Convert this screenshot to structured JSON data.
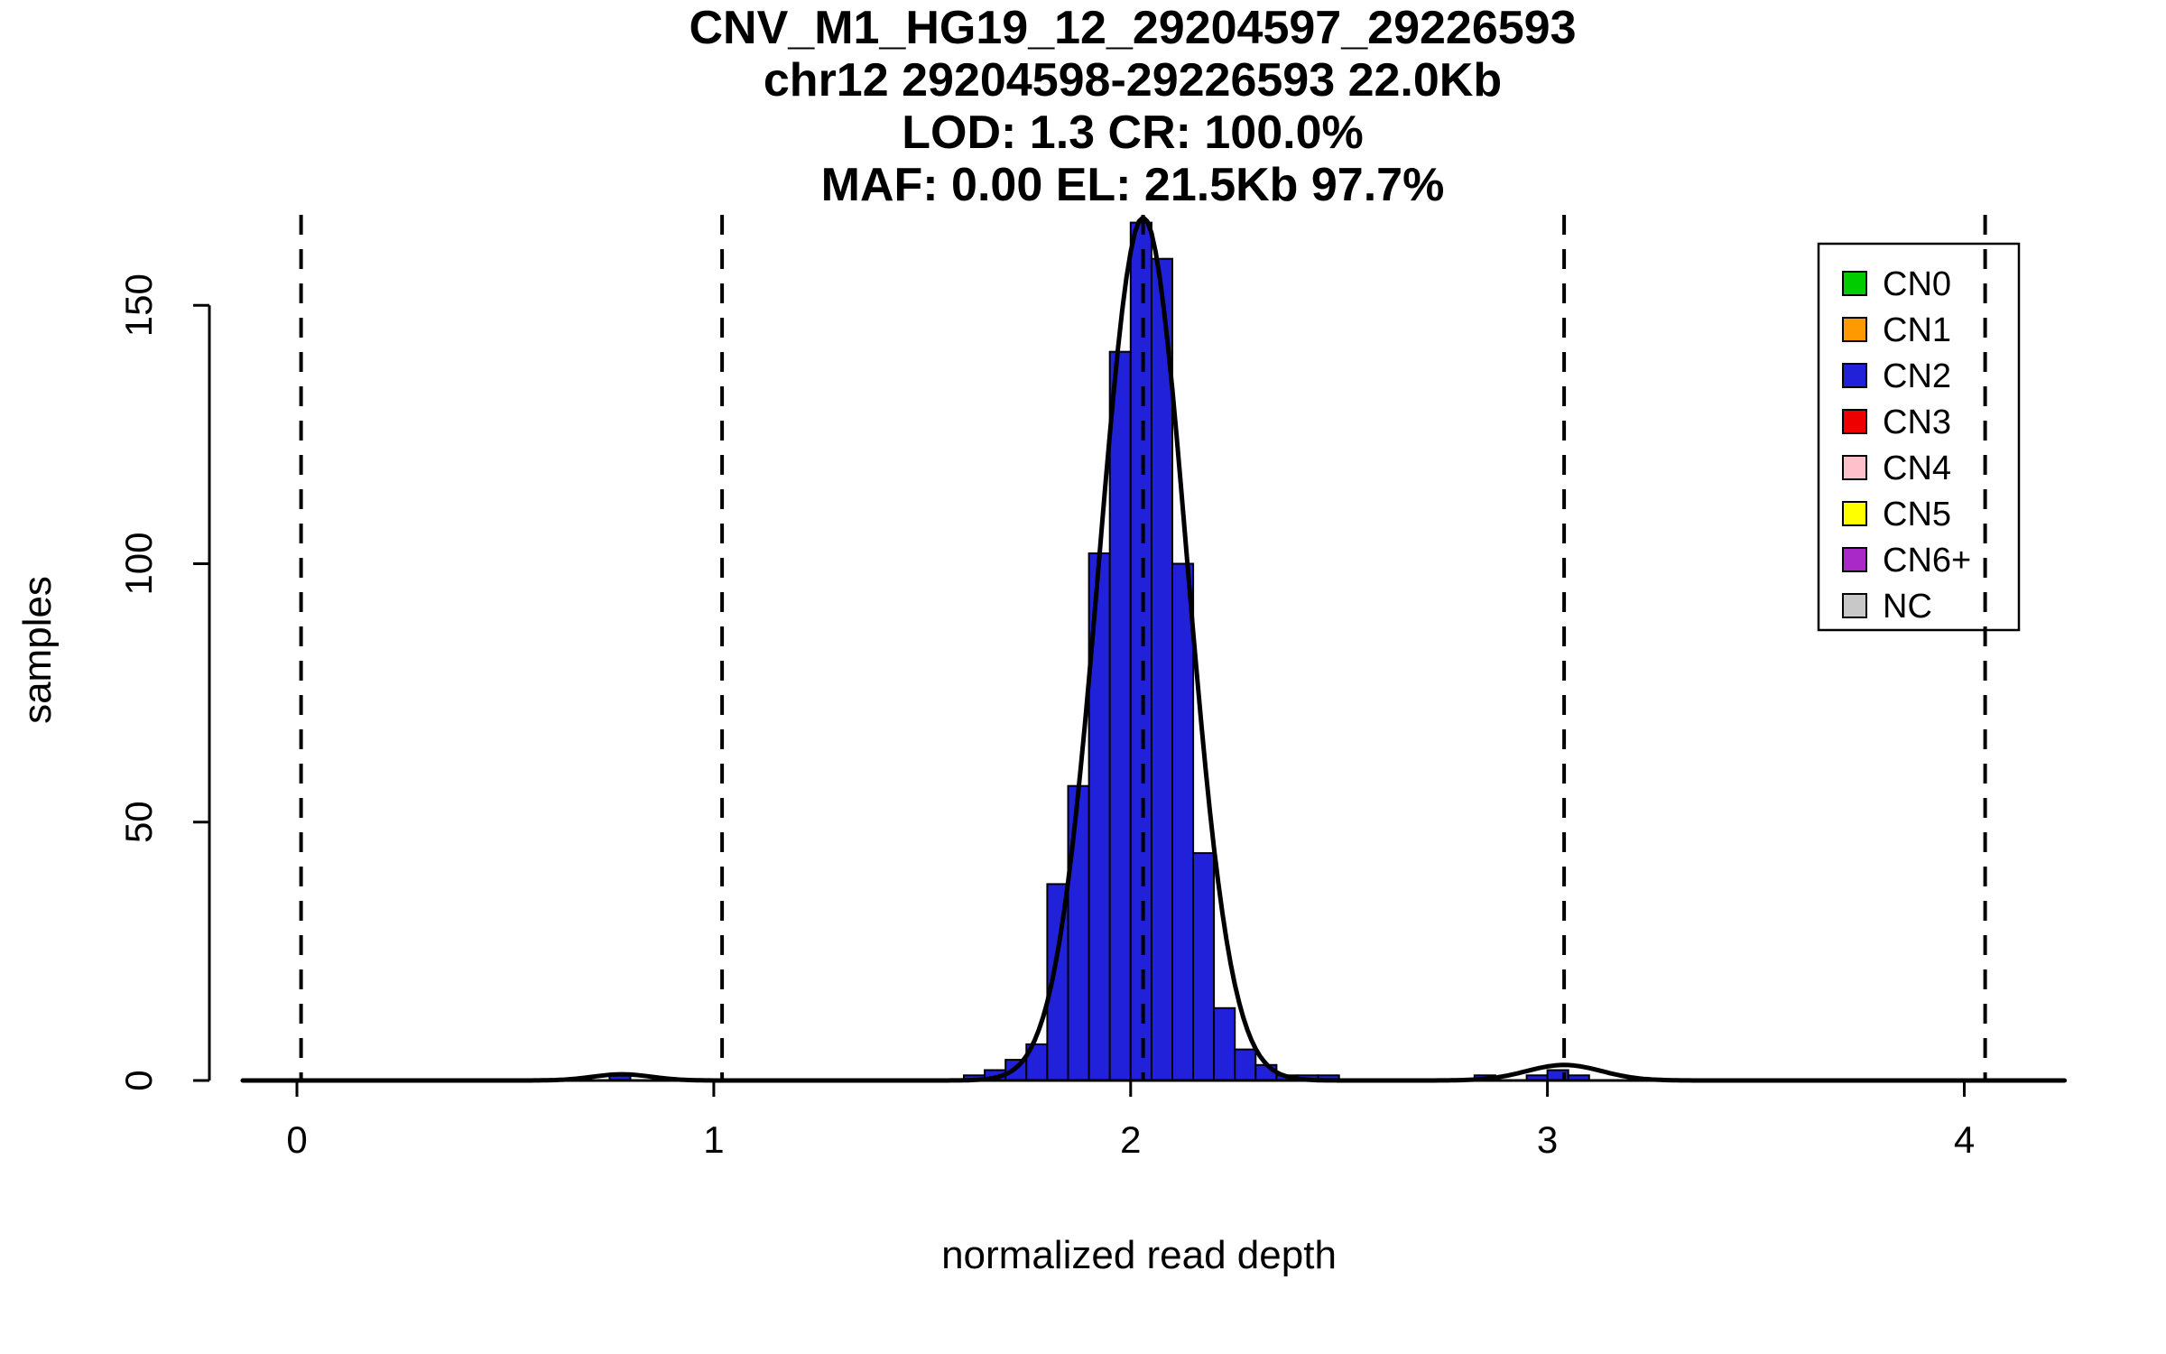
{
  "chart_data": {
    "type": "bar",
    "title": "CNV_M1_HG19_12_29204597_29226593",
    "subtitle": "chr12 29204598-29226593 22.0Kb",
    "stats_line1": "LOD: 1.3 CR: 100.0%",
    "stats_line2": "MAF: 0.00 EL: 21.5Kb 97.7%",
    "xlabel": "normalized read depth",
    "ylabel": "samples",
    "xlim": [
      -0.21,
      4.25
    ],
    "ylim": [
      0,
      167.5
    ],
    "x_ticks": [
      0,
      1,
      2,
      3,
      4
    ],
    "y_ticks": [
      0,
      50,
      100,
      150
    ],
    "grid": false,
    "legend_position": "top-right",
    "bin_width": 0.05,
    "bar_color": "#2121D9",
    "bar_border_color": "#000000",
    "bars": [
      {
        "x": 0.775,
        "count": 1
      },
      {
        "x": 1.625,
        "count": 1
      },
      {
        "x": 1.675,
        "count": 2
      },
      {
        "x": 1.725,
        "count": 4
      },
      {
        "x": 1.775,
        "count": 7
      },
      {
        "x": 1.825,
        "count": 38
      },
      {
        "x": 1.875,
        "count": 57
      },
      {
        "x": 1.925,
        "count": 102
      },
      {
        "x": 1.975,
        "count": 141
      },
      {
        "x": 2.025,
        "count": 166
      },
      {
        "x": 2.075,
        "count": 159
      },
      {
        "x": 2.125,
        "count": 100
      },
      {
        "x": 2.175,
        "count": 44
      },
      {
        "x": 2.225,
        "count": 14
      },
      {
        "x": 2.275,
        "count": 6
      },
      {
        "x": 2.325,
        "count": 3
      },
      {
        "x": 2.375,
        "count": 1
      },
      {
        "x": 2.425,
        "count": 1
      },
      {
        "x": 2.475,
        "count": 1
      },
      {
        "x": 2.85,
        "count": 1
      },
      {
        "x": 2.975,
        "count": 1
      },
      {
        "x": 3.025,
        "count": 2
      },
      {
        "x": 3.075,
        "count": 1
      }
    ],
    "dashed_vlines": [
      0.01,
      1.02,
      2.03,
      3.04,
      4.05
    ],
    "density_curve": {
      "color": "#000000",
      "range": [
        -0.13,
        4.24
      ],
      "gaussians": [
        {
          "amp": 167,
          "mu": 2.03,
          "sd": 0.105
        },
        {
          "amp": 3,
          "mu": 3.04,
          "sd": 0.09
        },
        {
          "amp": 1.2,
          "mu": 0.78,
          "sd": 0.07
        }
      ]
    },
    "legend": {
      "items": [
        {
          "label": "CN0",
          "color": "#00CC00"
        },
        {
          "label": "CN1",
          "color": "#FF9900"
        },
        {
          "label": "CN2",
          "color": "#2121D9"
        },
        {
          "label": "CN3",
          "color": "#EE0000"
        },
        {
          "label": "CN4",
          "color": "#FFC0CB"
        },
        {
          "label": "CN5",
          "color": "#FFFF00"
        },
        {
          "label": "CN6+",
          "color": "#A828C8"
        },
        {
          "label": "NC",
          "color": "#C8C8C8"
        }
      ]
    }
  }
}
